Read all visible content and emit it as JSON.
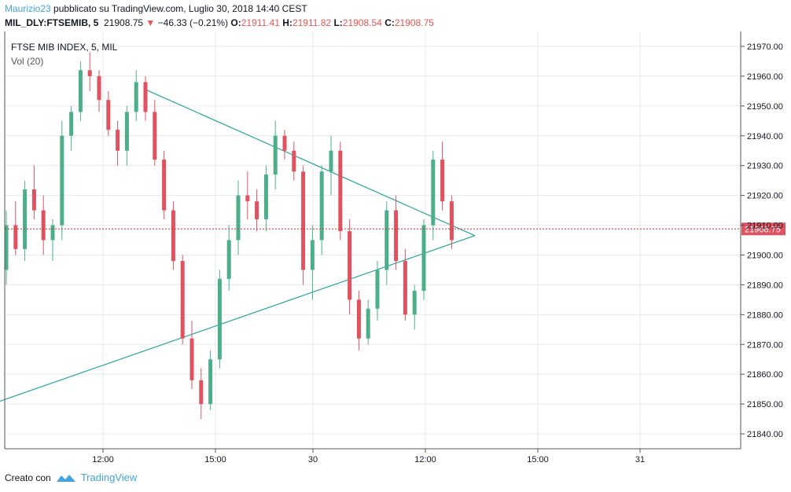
{
  "header": {
    "author": "Maurizio23",
    "published": " pubblicato su TradingView.com, Luglio 30, 2018 14:40 CEST",
    "symbol": "MIL_DLY:FTSEMIB, 5",
    "last": "21908.75",
    "change": "−46.33 (−0.21%)",
    "o_label": "O:",
    "o_val": "21911.41",
    "h_label": "H:",
    "h_val": "21911.82",
    "l_label": "L:",
    "l_val": "21908.54",
    "c_label": "C:",
    "c_val": "21908.75"
  },
  "legend": {
    "title": "FTSE MIB INDEX, 5, MIL",
    "volume": "Vol (20)"
  },
  "footer": {
    "created_with": "Creato con",
    "brand": "TradingView"
  },
  "colors": {
    "up": "#4caf8a",
    "down": "#e05260",
    "triangle": "#26a69a",
    "price_line": "#c0392b",
    "grid": "#e6e8ec"
  },
  "chart_data": {
    "type": "candlestick",
    "title": "FTSE MIB INDEX, 5, MIL",
    "ylim": [
      21835,
      21975
    ],
    "y_ticks": [
      21840,
      21850,
      21860,
      21870,
      21880,
      21890,
      21900,
      21910,
      21920,
      21930,
      21940,
      21950,
      21960,
      21970
    ],
    "y_tick_labels": [
      "21840.00",
      "21850.00",
      "21860.00",
      "21870.00",
      "21880.00",
      "21890.00",
      "21900.00",
      "21910.00",
      "21920.00",
      "21930.00",
      "21940.00",
      "21950.00",
      "21960.00",
      "21970.00"
    ],
    "x_ticks": [
      "12:00",
      "15:00",
      "30",
      "12:00",
      "15:00",
      "31"
    ],
    "last_price": 21908.75,
    "last_price_label": "21908.75",
    "trendlines": [
      {
        "from": [
          -2.5,
          21849.0
        ],
        "to": [
          50.5,
          21906.5
        ]
      },
      {
        "from": [
          15.0,
          21955.5
        ],
        "to": [
          50.5,
          21906.5
        ]
      }
    ],
    "candles": [
      [
        21895,
        21915,
        21890,
        21910
      ],
      [
        21910,
        21918,
        21900,
        21902
      ],
      [
        21902,
        21925,
        21898,
        21922
      ],
      [
        21922,
        21930,
        21912,
        21915
      ],
      [
        21915,
        21920,
        21900,
        21905
      ],
      [
        21905,
        21912,
        21898,
        21910
      ],
      [
        21910,
        21945,
        21905,
        21940
      ],
      [
        21940,
        21950,
        21935,
        21948
      ],
      [
        21948,
        21965,
        21945,
        21962
      ],
      [
        21962,
        21968,
        21955,
        21960
      ],
      [
        21960,
        21962,
        21948,
        21952
      ],
      [
        21952,
        21955,
        21940,
        21942
      ],
      [
        21942,
        21945,
        21930,
        21935
      ],
      [
        21935,
        21950,
        21930,
        21948
      ],
      [
        21948,
        21962,
        21945,
        21958
      ],
      [
        21958,
        21960,
        21945,
        21948
      ],
      [
        21948,
        21952,
        21930,
        21932
      ],
      [
        21932,
        21935,
        21912,
        21915
      ],
      [
        21915,
        21918,
        21895,
        21898
      ],
      [
        21898,
        21900,
        21870,
        21872
      ],
      [
        21872,
        21878,
        21855,
        21858
      ],
      [
        21858,
        21862,
        21845,
        21850
      ],
      [
        21850,
        21868,
        21848,
        21865
      ],
      [
        21865,
        21895,
        21862,
        21892
      ],
      [
        21892,
        21910,
        21888,
        21905
      ],
      [
        21905,
        21925,
        21900,
        21920
      ],
      [
        21920,
        21928,
        21912,
        21918
      ],
      [
        21918,
        21922,
        21908,
        21912
      ],
      [
        21912,
        21930,
        21908,
        21927
      ],
      [
        21927,
        21945,
        21922,
        21940
      ],
      [
        21940,
        21942,
        21932,
        21935
      ],
      [
        21935,
        21938,
        21925,
        21928
      ],
      [
        21928,
        21930,
        21890,
        21895
      ],
      [
        21895,
        21910,
        21885,
        21905
      ],
      [
        21905,
        21930,
        21900,
        21928
      ],
      [
        21928,
        21940,
        21920,
        21935
      ],
      [
        21935,
        21938,
        21905,
        21908
      ],
      [
        21908,
        21912,
        21880,
        21885
      ],
      [
        21885,
        21888,
        21868,
        21872
      ],
      [
        21872,
        21885,
        21870,
        21882
      ],
      [
        21882,
        21898,
        21878,
        21895
      ],
      [
        21895,
        21918,
        21890,
        21915
      ],
      [
        21915,
        21920,
        21895,
        21898
      ],
      [
        21898,
        21902,
        21878,
        21880
      ],
      [
        21880,
        21890,
        21875,
        21888
      ],
      [
        21888,
        21912,
        21885,
        21910
      ],
      [
        21910,
        21935,
        21905,
        21932
      ],
      [
        21932,
        21938,
        21915,
        21918
      ],
      [
        21918,
        21920,
        21902,
        21905
      ]
    ]
  }
}
